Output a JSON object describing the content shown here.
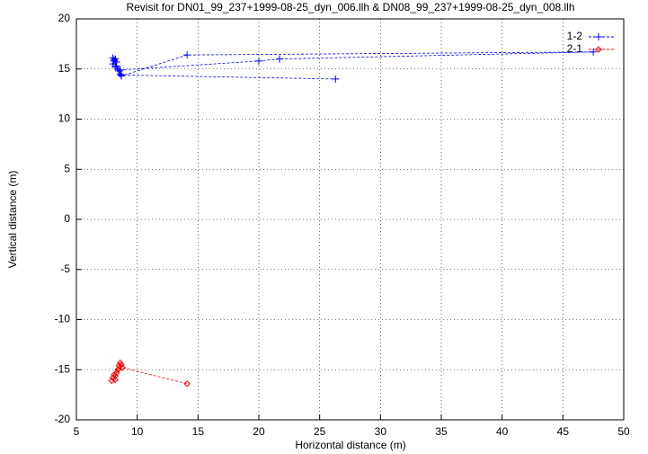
{
  "chart_data": {
    "type": "line",
    "title": "Revisit for DN01_99_237+1999-08-25_dyn_006.llh & DN08_99_237+1999-08-25_dyn_008.llh",
    "x_label": "Horizontal distance (m)",
    "y_label": "Vertical distance (m)",
    "xlim": [
      5,
      50
    ],
    "xticks": [
      5,
      10,
      15,
      20,
      25,
      30,
      35,
      40,
      45,
      50
    ],
    "ylim": [
      -20,
      20
    ],
    "yticks": [
      -20,
      -15,
      -10,
      -5,
      0,
      5,
      10,
      15,
      20
    ],
    "grid": true,
    "legend": "top-right",
    "series": [
      {
        "name": "1-2",
        "color": "#0000ff",
        "marker": "plus",
        "x": [
          8.0,
          8.1,
          8.2,
          8.0,
          8.3,
          8.2,
          8.4,
          8.1,
          8.5,
          8.6,
          8.3,
          8.7,
          14.1,
          47.5,
          21.7,
          20.0,
          8.6,
          8.7,
          26.3
        ],
        "values": [
          16.1,
          15.8,
          16.0,
          15.5,
          15.7,
          15.2,
          15.0,
          15.9,
          14.8,
          14.5,
          15.3,
          14.3,
          16.4,
          16.7,
          16.0,
          15.8,
          14.9,
          14.4,
          14.0
        ]
      },
      {
        "name": "2-1",
        "color": "#ff0000",
        "marker": "diamond",
        "x": [
          7.9,
          8.0,
          8.2,
          8.1,
          8.3,
          8.4,
          8.2,
          8.5,
          8.6,
          8.7,
          8.5,
          8.8,
          14.1
        ],
        "values": [
          -16.1,
          -15.8,
          -16.0,
          -15.5,
          -15.3,
          -15.0,
          -15.6,
          -14.6,
          -14.3,
          -14.5,
          -14.9,
          -14.8,
          -16.4
        ]
      }
    ]
  }
}
